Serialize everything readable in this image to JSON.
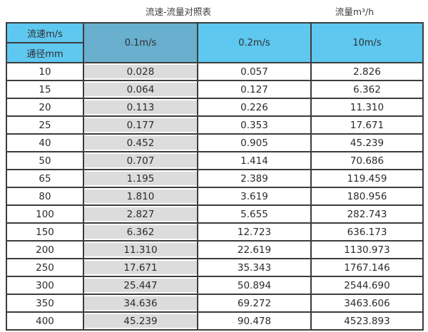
{
  "titles": {
    "main": "流速-流量对照表",
    "unit": "流量m³/h"
  },
  "table": {
    "corner_top": "流速m/s",
    "corner_bottom": "通径mm",
    "velocity_columns": [
      "0.1m/s",
      "0.2m/s",
      "10m/s"
    ],
    "rows": [
      [
        "10",
        "0.028",
        "0.057",
        "2.826"
      ],
      [
        "15",
        "0.064",
        "0.127",
        "6.362"
      ],
      [
        "20",
        "0.113",
        "0.226",
        "11.310"
      ],
      [
        "25",
        "0.177",
        "0.353",
        "17.671"
      ],
      [
        "40",
        "0.452",
        "0.905",
        "45.239"
      ],
      [
        "50",
        "0.707",
        "1.414",
        "70.686"
      ],
      [
        "65",
        "1.195",
        "2.389",
        "119.459"
      ],
      [
        "80",
        "1.810",
        "3.619",
        "180.956"
      ],
      [
        "100",
        "2.827",
        "5.655",
        "282.743"
      ],
      [
        "150",
        "6.362",
        "12.723",
        "636.173"
      ],
      [
        "200",
        "11.310",
        "22.619",
        "1130.973"
      ],
      [
        "250",
        "17.671",
        "35.343",
        "1767.146"
      ],
      [
        "300",
        "25.447",
        "50.894",
        "2544.690"
      ],
      [
        "350",
        "34.636",
        "69.272",
        "3463.606"
      ],
      [
        "400",
        "45.239",
        "90.478",
        "4523.893"
      ]
    ]
  },
  "colors": {
    "header_light_blue": "#5FC8F0",
    "header_dark_blue": "#69AFCE",
    "gray_column": "#DCDCDC",
    "grid_border": "#3C3C3C"
  }
}
